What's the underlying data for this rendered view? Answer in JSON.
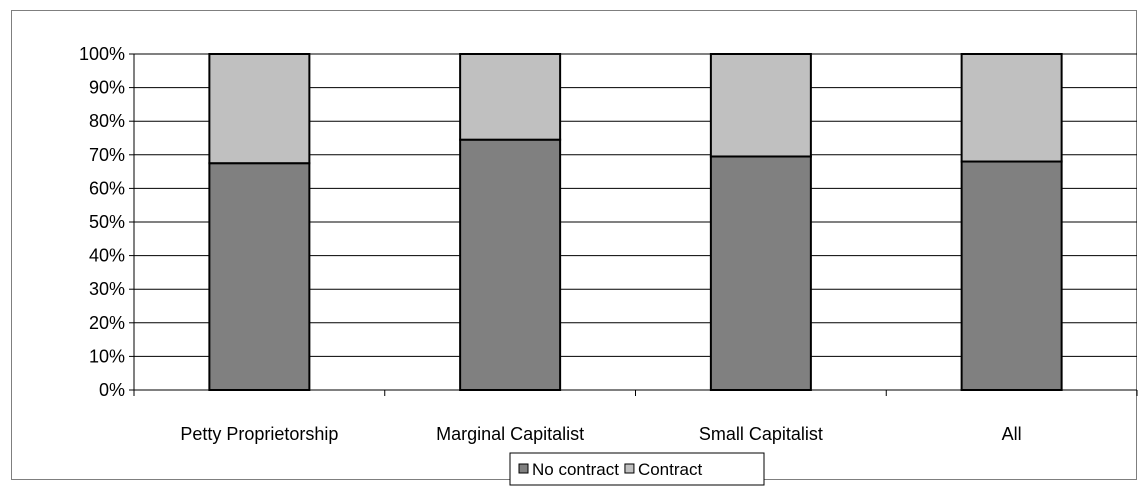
{
  "chart_data": {
    "type": "bar",
    "stacked": true,
    "percent": true,
    "categories": [
      "Petty Proprietorship",
      "Marginal Capitalist",
      "Small Capitalist",
      "All"
    ],
    "series": [
      {
        "name": "No contract",
        "values": [
          67.5,
          74.5,
          69.5,
          68.0
        ],
        "color": "#808080"
      },
      {
        "name": "Contract",
        "values": [
          32.5,
          25.5,
          30.5,
          32.0
        ],
        "color": "#c0c0c0"
      }
    ],
    "y_ticks": [
      "0%",
      "10%",
      "20%",
      "30%",
      "40%",
      "50%",
      "60%",
      "70%",
      "80%",
      "90%",
      "100%"
    ],
    "ylim": [
      0,
      100
    ],
    "grid": true,
    "legend_position": "bottom"
  }
}
